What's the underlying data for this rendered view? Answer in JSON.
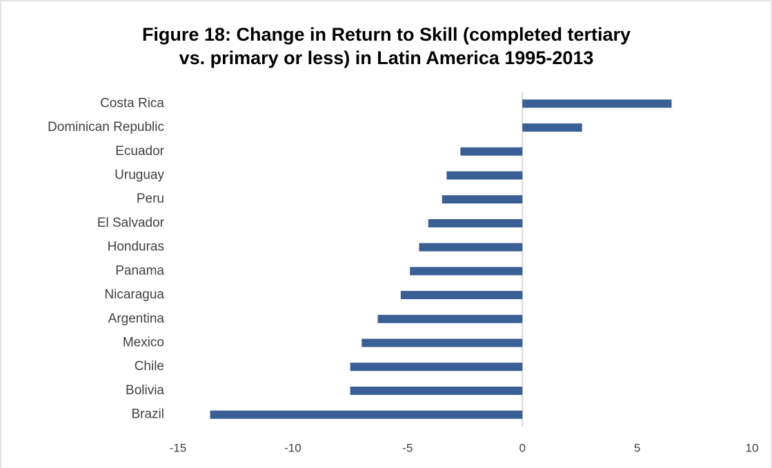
{
  "chart_data": {
    "type": "hbar",
    "title": [
      "Figure 18: Change in Return to Skill (completed tertiary",
      "vs. primary or less) in Latin America 1995-2013"
    ],
    "categories": [
      "Costa Rica",
      "Dominican Republic",
      "Ecuador",
      "Uruguay",
      "Peru",
      "El Salvador",
      "Honduras",
      "Panama",
      "Nicaragua",
      "Argentina",
      "Mexico",
      "Chile",
      "Bolivia",
      "Brazil"
    ],
    "values": [
      6.5,
      2.6,
      -2.7,
      -3.3,
      -3.5,
      -4.1,
      -4.5,
      -4.9,
      -5.3,
      -6.3,
      -7.0,
      -7.5,
      -7.5,
      -13.6
    ],
    "color": "#3a5f94",
    "xlim": [
      -15,
      10
    ],
    "xticks": [
      -15,
      -10,
      -5,
      0,
      5,
      10
    ],
    "grid": false
  }
}
